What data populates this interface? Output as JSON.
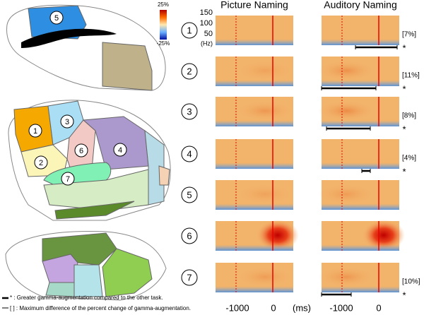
{
  "colorbar": {
    "max": "25%",
    "min": "-25%"
  },
  "brain_labels": [
    "5",
    "1",
    "2",
    "3",
    "6",
    "4",
    "7"
  ],
  "columns": [
    "Picture Naming",
    "Auditory Naming"
  ],
  "freq_axis": [
    "150",
    "100",
    "50",
    "(Hz)"
  ],
  "time_axis": {
    "picture": [
      "-1000",
      "0",
      "(ms)"
    ],
    "auditory": [
      "-1000",
      "0"
    ]
  },
  "rows": [
    {
      "label": "1",
      "difference": "[7%]",
      "significance": "*"
    },
    {
      "label": "2",
      "difference": "[11%]",
      "significance": "*"
    },
    {
      "label": "3",
      "difference": "[8%]",
      "significance": "*"
    },
    {
      "label": "4",
      "difference": "[4%]",
      "significance": "*"
    },
    {
      "label": "5",
      "difference": null,
      "significance": null
    },
    {
      "label": "6",
      "difference": null,
      "significance": null
    },
    {
      "label": "7",
      "difference": "[10%]",
      "significance": "*"
    }
  ],
  "legend": {
    "star": "* : Greater gamma-augmentation  compared to the other task.",
    "bracket": "[ ] : Maximum  difference of the percent change of gamma-augmentation."
  }
}
